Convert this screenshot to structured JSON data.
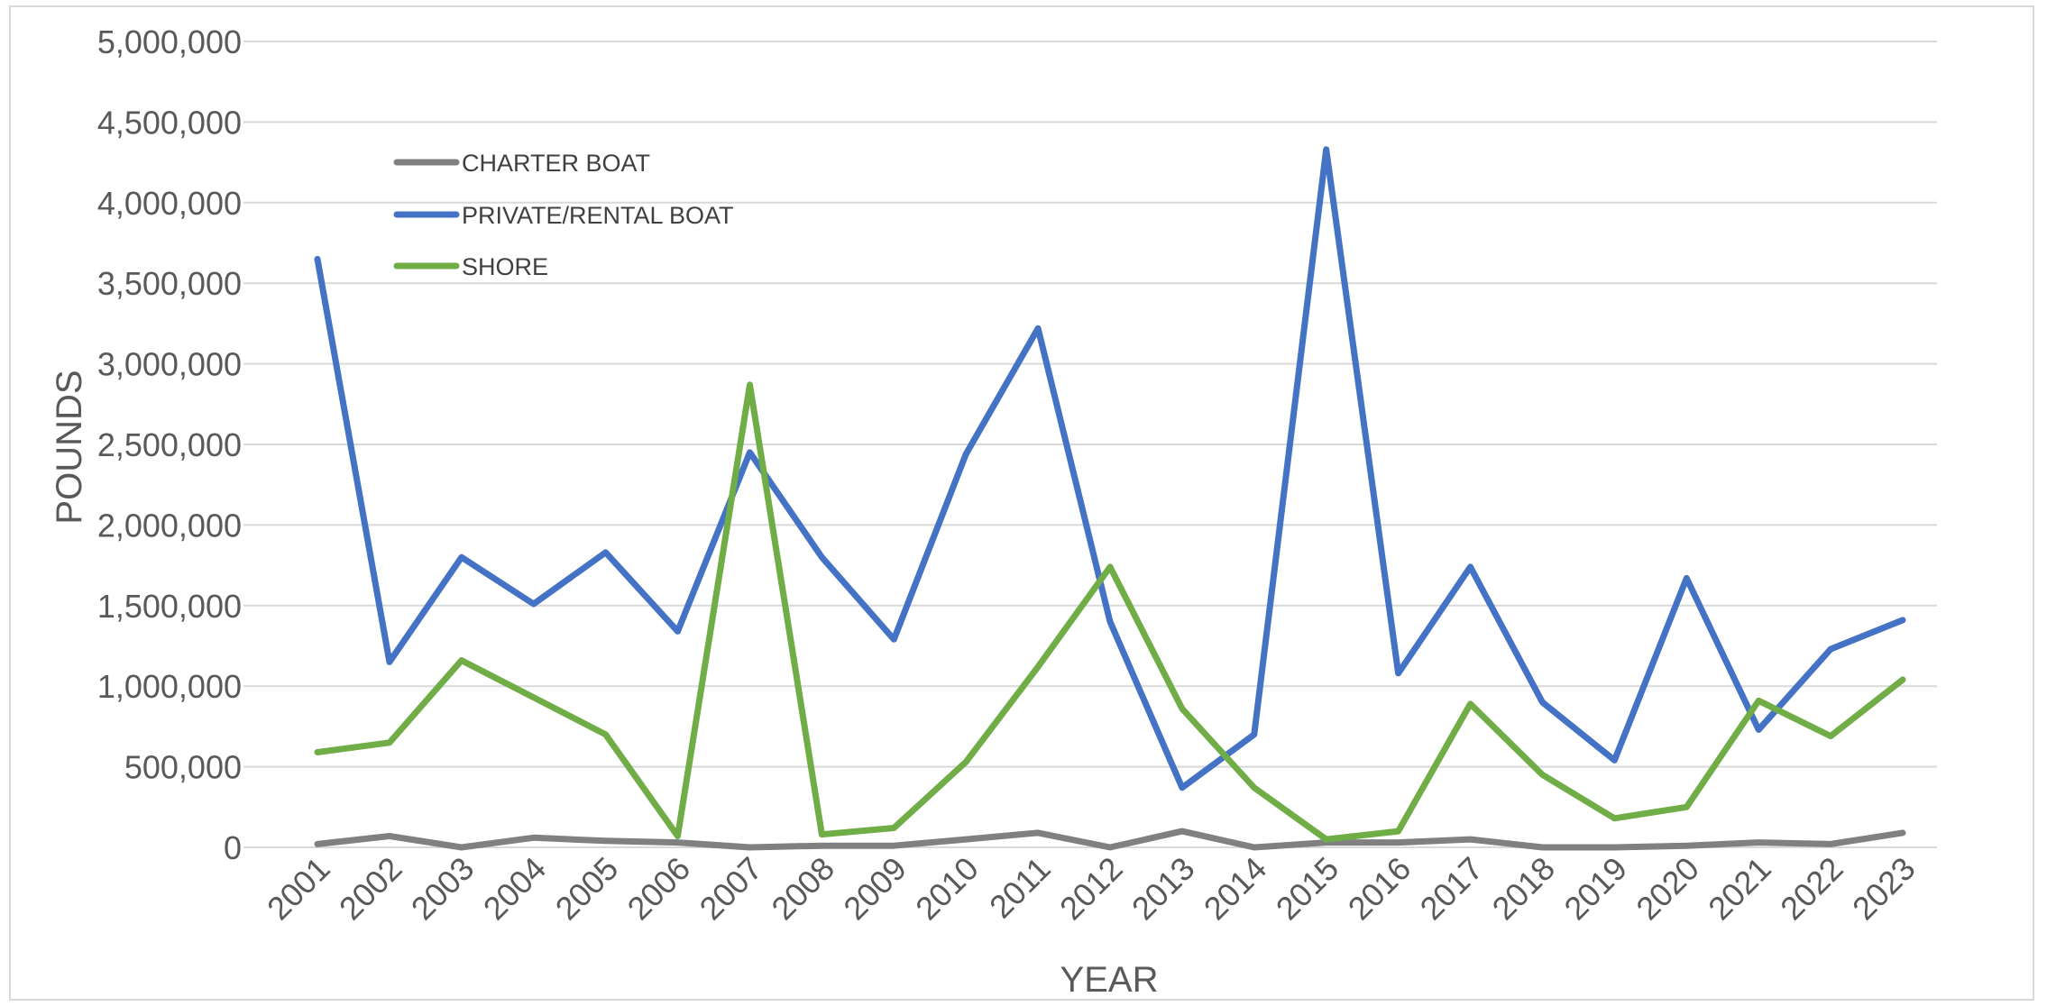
{
  "chart_data": {
    "type": "line",
    "title": "",
    "xlabel": "YEAR",
    "ylabel": "POUNDS",
    "ylim": [
      0,
      5000000
    ],
    "y_ticks": [
      0,
      500000,
      1000000,
      1500000,
      2000000,
      2500000,
      3000000,
      3500000,
      4000000,
      4500000,
      5000000
    ],
    "y_tick_labels": [
      "0",
      "500,000",
      "1,000,000",
      "1,500,000",
      "2,000,000",
      "2,500,000",
      "3,000,000",
      "3,500,000",
      "4,000,000",
      "4,500,000",
      "5,000,000"
    ],
    "grid": true,
    "legend_position": "top-left",
    "categories": [
      "2001",
      "2002",
      "2003",
      "2004",
      "2005",
      "2006",
      "2007",
      "2008",
      "2009",
      "2010",
      "2011",
      "2012",
      "2013",
      "2014",
      "2015",
      "2016",
      "2017",
      "2018",
      "2019",
      "2020",
      "2021",
      "2022",
      "2023"
    ],
    "series": [
      {
        "name": "CHARTER BOAT",
        "color": "#808080",
        "values": [
          20000,
          70000,
          0,
          60000,
          40000,
          30000,
          0,
          10000,
          10000,
          50000,
          90000,
          0,
          100000,
          0,
          30000,
          30000,
          50000,
          0,
          0,
          10000,
          30000,
          20000,
          90000
        ]
      },
      {
        "name": "PRIVATE/RENTAL BOAT",
        "color": "#4472c4",
        "values": [
          3650000,
          1150000,
          1800000,
          1510000,
          1830000,
          1340000,
          2450000,
          1800000,
          1290000,
          2440000,
          3220000,
          1400000,
          370000,
          700000,
          4330000,
          1080000,
          1740000,
          900000,
          540000,
          1670000,
          730000,
          1230000,
          1410000
        ]
      },
      {
        "name": "SHORE",
        "color": "#70ad47",
        "values": [
          590000,
          650000,
          1160000,
          930000,
          700000,
          70000,
          2870000,
          80000,
          120000,
          530000,
          1120000,
          1740000,
          860000,
          370000,
          50000,
          100000,
          890000,
          450000,
          180000,
          250000,
          910000,
          690000,
          1040000
        ]
      }
    ]
  }
}
